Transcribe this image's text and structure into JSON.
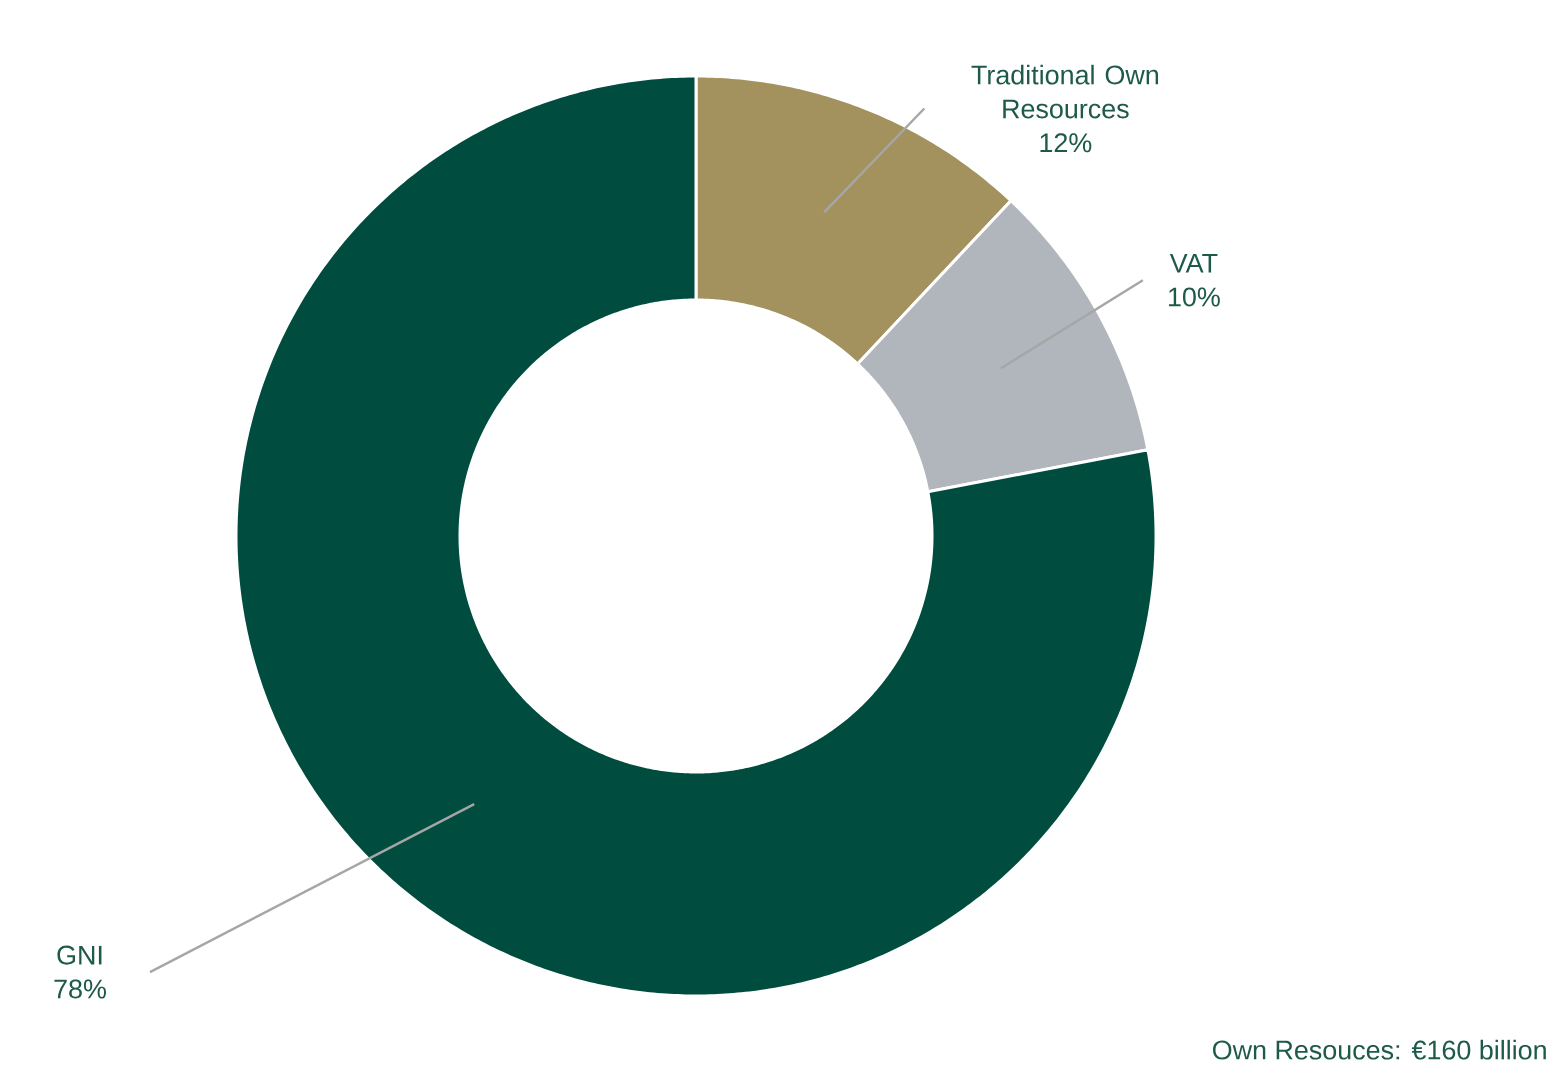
{
  "chart_data": {
    "type": "donut",
    "categories": [
      "Traditional Own Resources",
      "VAT",
      "GNI"
    ],
    "values": [
      12,
      10,
      78
    ],
    "value_labels": [
      "12%",
      "10%",
      "78%"
    ],
    "colors": [
      "#a3925e",
      "#b1b6bd",
      "#004d40"
    ],
    "legend": false,
    "annotations": [
      "Own Resouces: €160 billion"
    ]
  }
}
